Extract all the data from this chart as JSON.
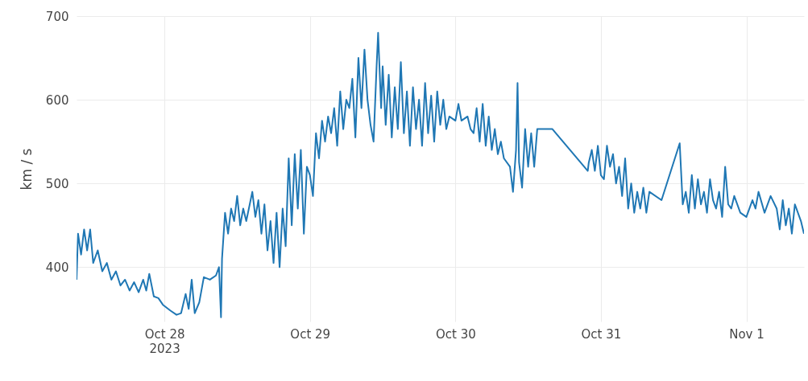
{
  "chart_data": {
    "type": "line",
    "ylabel": "km / s",
    "x": [
      "2023-10-27T09:30",
      "2023-10-27T09:45",
      "2023-10-27T10:15",
      "2023-10-27T10:45",
      "2023-10-27T11:15",
      "2023-10-27T11:45",
      "2023-10-27T12:15",
      "2023-10-27T13:00",
      "2023-10-27T13:45",
      "2023-10-27T14:30",
      "2023-10-27T15:15",
      "2023-10-27T16:00",
      "2023-10-27T16:45",
      "2023-10-27T17:30",
      "2023-10-27T18:15",
      "2023-10-27T19:00",
      "2023-10-27T19:45",
      "2023-10-27T20:30",
      "2023-10-27T21:00",
      "2023-10-27T21:30",
      "2023-10-27T22:15",
      "2023-10-27T23:00",
      "2023-10-27T23:45",
      "2023-10-28T01:00",
      "2023-10-28T02:00",
      "2023-10-28T02:45",
      "2023-10-28T03:30",
      "2023-10-28T04:00",
      "2023-10-28T04:30",
      "2023-10-28T05:00",
      "2023-10-28T05:45",
      "2023-10-28T06:30",
      "2023-10-28T07:30",
      "2023-10-28T08:30",
      "2023-10-28T09:00",
      "2023-10-28T09:20",
      "2023-10-28T09:30",
      "2023-10-28T10:00",
      "2023-10-28T10:30",
      "2023-10-28T11:00",
      "2023-10-28T11:30",
      "2023-10-28T12:00",
      "2023-10-28T12:30",
      "2023-10-28T13:00",
      "2023-10-28T13:30",
      "2023-10-28T14:30",
      "2023-10-28T15:00",
      "2023-10-28T15:30",
      "2023-10-28T16:00",
      "2023-10-28T16:30",
      "2023-10-28T17:00",
      "2023-10-28T17:30",
      "2023-10-28T18:00",
      "2023-10-28T18:30",
      "2023-10-28T19:00",
      "2023-10-28T19:30",
      "2023-10-28T20:00",
      "2023-10-28T20:30",
      "2023-10-28T21:00",
      "2023-10-28T21:30",
      "2023-10-28T22:00",
      "2023-10-28T22:30",
      "2023-10-28T23:00",
      "2023-10-28T23:30",
      "2023-10-29T00:00",
      "2023-10-29T00:30",
      "2023-10-29T01:00",
      "2023-10-29T01:30",
      "2023-10-29T02:00",
      "2023-10-29T02:30",
      "2023-10-29T03:00",
      "2023-10-29T03:30",
      "2023-10-29T04:00",
      "2023-10-29T04:30",
      "2023-10-29T05:00",
      "2023-10-29T05:30",
      "2023-10-29T06:00",
      "2023-10-29T06:30",
      "2023-10-29T07:00",
      "2023-10-29T07:30",
      "2023-10-29T08:00",
      "2023-10-29T08:30",
      "2023-10-29T09:00",
      "2023-10-29T09:30",
      "2023-10-29T10:00",
      "2023-10-29T10:30",
      "2023-10-29T11:00",
      "2023-10-29T11:15",
      "2023-10-29T11:45",
      "2023-10-29T12:00",
      "2023-10-29T12:30",
      "2023-10-29T13:00",
      "2023-10-29T13:30",
      "2023-10-29T14:00",
      "2023-10-29T14:30",
      "2023-10-29T15:00",
      "2023-10-29T15:30",
      "2023-10-29T16:00",
      "2023-10-29T16:30",
      "2023-10-29T17:00",
      "2023-10-29T17:30",
      "2023-10-29T18:00",
      "2023-10-29T18:30",
      "2023-10-29T19:00",
      "2023-10-29T19:30",
      "2023-10-29T20:00",
      "2023-10-29T20:30",
      "2023-10-29T21:00",
      "2023-10-29T21:30",
      "2023-10-29T22:00",
      "2023-10-29T22:30",
      "2023-10-29T23:00",
      "2023-10-30T00:00",
      "2023-10-30T00:30",
      "2023-10-30T01:00",
      "2023-10-30T02:00",
      "2023-10-30T02:30",
      "2023-10-30T03:00",
      "2023-10-30T03:30",
      "2023-10-30T04:00",
      "2023-10-30T04:30",
      "2023-10-30T05:00",
      "2023-10-30T05:30",
      "2023-10-30T06:00",
      "2023-10-30T06:30",
      "2023-10-30T07:00",
      "2023-10-30T07:30",
      "2023-10-30T08:00",
      "2023-10-30T09:00",
      "2023-10-30T09:30",
      "2023-10-30T10:00",
      "2023-10-30T10:15",
      "2023-10-30T10:30",
      "2023-10-30T11:00",
      "2023-10-30T11:30",
      "2023-10-30T12:00",
      "2023-10-30T12:30",
      "2023-10-30T13:00",
      "2023-10-30T13:30",
      "2023-10-30T16:00",
      "2023-10-30T21:50",
      "2023-10-30T22:00",
      "2023-10-30T22:30",
      "2023-10-30T23:00",
      "2023-10-30T23:30",
      "2023-10-31T00:00",
      "2023-10-31T00:30",
      "2023-10-31T01:00",
      "2023-10-31T01:30",
      "2023-10-31T02:00",
      "2023-10-31T02:30",
      "2023-10-31T03:00",
      "2023-10-31T03:30",
      "2023-10-31T04:00",
      "2023-10-31T04:30",
      "2023-10-31T05:00",
      "2023-10-31T05:30",
      "2023-10-31T06:00",
      "2023-10-31T06:30",
      "2023-10-31T07:00",
      "2023-10-31T07:30",
      "2023-10-31T08:00",
      "2023-10-31T10:00",
      "2023-10-31T13:00",
      "2023-10-31T13:30",
      "2023-10-31T14:00",
      "2023-10-31T14:30",
      "2023-10-31T15:00",
      "2023-10-31T15:30",
      "2023-10-31T16:00",
      "2023-10-31T16:30",
      "2023-10-31T17:00",
      "2023-10-31T17:30",
      "2023-10-31T18:00",
      "2023-10-31T18:30",
      "2023-10-31T19:00",
      "2023-10-31T19:30",
      "2023-10-31T20:00",
      "2023-10-31T20:30",
      "2023-10-31T21:00",
      "2023-10-31T21:30",
      "2023-10-31T22:00",
      "2023-10-31T23:00",
      "2023-11-01T00:00",
      "2023-11-01T01:00",
      "2023-11-01T01:30",
      "2023-11-01T02:00",
      "2023-11-01T03:00",
      "2023-11-01T04:00",
      "2023-11-01T05:00",
      "2023-11-01T05:30",
      "2023-11-01T06:00",
      "2023-11-01T06:30",
      "2023-11-01T07:00",
      "2023-11-01T07:30",
      "2023-11-01T08:00",
      "2023-11-01T09:00",
      "2023-11-01T09:30"
    ],
    "series": [
      {
        "color": "#1f77b4",
        "values": [
          385,
          440,
          415,
          445,
          420,
          445,
          405,
          420,
          395,
          405,
          385,
          395,
          378,
          385,
          372,
          382,
          370,
          385,
          372,
          392,
          365,
          363,
          355,
          348,
          343,
          345,
          368,
          350,
          385,
          345,
          358,
          388,
          385,
          390,
          400,
          340,
          410,
          465,
          440,
          470,
          455,
          485,
          450,
          470,
          455,
          490,
          460,
          480,
          440,
          475,
          420,
          455,
          405,
          465,
          400,
          470,
          425,
          530,
          450,
          535,
          470,
          540,
          440,
          520,
          510,
          485,
          560,
          530,
          575,
          550,
          580,
          560,
          590,
          545,
          610,
          565,
          600,
          590,
          625,
          555,
          650,
          590,
          660,
          600,
          570,
          550,
          640,
          680,
          590,
          640,
          570,
          630,
          555,
          615,
          565,
          645,
          560,
          610,
          545,
          615,
          565,
          600,
          545,
          620,
          560,
          605,
          550,
          610,
          570,
          600,
          565,
          580,
          575,
          595,
          575,
          580,
          565,
          560,
          590,
          550,
          595,
          545,
          580,
          540,
          565,
          535,
          550,
          530,
          520,
          490,
          540,
          620,
          525,
          495,
          565,
          520,
          560,
          520,
          565,
          565,
          515,
          525,
          540,
          515,
          545,
          510,
          505,
          545,
          520,
          535,
          500,
          520,
          485,
          530,
          470,
          500,
          465,
          490,
          470,
          495,
          465,
          490,
          480,
          548,
          475,
          490,
          465,
          510,
          470,
          505,
          475,
          490,
          465,
          505,
          480,
          470,
          490,
          460,
          520,
          475,
          470,
          485,
          465,
          460,
          480,
          470,
          490,
          465,
          485,
          470,
          445,
          480,
          450,
          470,
          440,
          475,
          455,
          440
        ]
      }
    ],
    "xlim": [
      "2023-10-27T09:30",
      "2023-11-01T09:30"
    ],
    "xticks": [
      {
        "value": "2023-10-28T00:00",
        "label": "Oct 28\n2023"
      },
      {
        "value": "2023-10-29T00:00",
        "label": "Oct 29"
      },
      {
        "value": "2023-10-30T00:00",
        "label": "Oct 30"
      },
      {
        "value": "2023-10-31T00:00",
        "label": "Oct 31"
      },
      {
        "value": "2023-11-01T00:00",
        "label": "Nov 1"
      }
    ],
    "ylim": [
      335,
      700
    ],
    "yticks": [
      400,
      500,
      600,
      700
    ],
    "grid": true
  }
}
